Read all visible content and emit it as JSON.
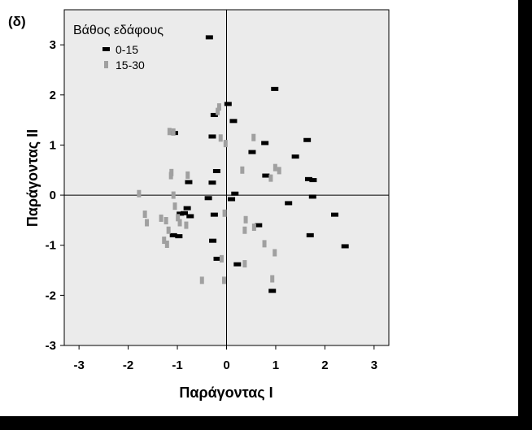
{
  "panel_label": "(δ)",
  "chart_data": {
    "type": "scatter",
    "xlabel": "Παράγοντας I",
    "ylabel": "Παράγοντας II",
    "xlim": [
      -3.3,
      3.3
    ],
    "ylim": [
      -3,
      3.7
    ],
    "xticks": [
      "-3",
      "-2",
      "-1",
      "0",
      "1",
      "2",
      "3"
    ],
    "yticks": [
      "-3",
      "-2",
      "-1",
      "0",
      "1",
      "2",
      "3"
    ],
    "xtick_values": [
      -3,
      -2,
      -1,
      0,
      1,
      2,
      3
    ],
    "ytick_values": [
      -3,
      -2,
      -1,
      0,
      1,
      2,
      3
    ],
    "reference_lines": {
      "x": 0,
      "y": 0
    },
    "plot_background": "#ebebeb",
    "legend": {
      "title": "Βάθος εδάφους",
      "position": "top-left",
      "entries": [
        {
          "label": "0-15",
          "color": "#000000"
        },
        {
          "label": "15-30",
          "color": "#a0a0a0"
        }
      ]
    },
    "series": [
      {
        "name": "0-15",
        "color": "#000000",
        "marker": "horizontal-bar",
        "points": [
          [
            -0.35,
            3.15
          ],
          [
            0.98,
            2.12
          ],
          [
            0.03,
            1.82
          ],
          [
            -0.25,
            1.6
          ],
          [
            0.14,
            1.48
          ],
          [
            -1.06,
            1.24
          ],
          [
            -0.29,
            1.17
          ],
          [
            1.64,
            1.1
          ],
          [
            0.78,
            1.04
          ],
          [
            0.52,
            0.86
          ],
          [
            1.4,
            0.77
          ],
          [
            -0.2,
            0.48
          ],
          [
            0.8,
            0.39
          ],
          [
            1.67,
            0.32
          ],
          [
            1.76,
            0.3
          ],
          [
            -0.77,
            0.26
          ],
          [
            -0.29,
            0.25
          ],
          [
            0.17,
            0.03
          ],
          [
            -0.37,
            -0.06
          ],
          [
            1.75,
            -0.03
          ],
          [
            0.1,
            -0.08
          ],
          [
            1.26,
            -0.16
          ],
          [
            -0.8,
            -0.26
          ],
          [
            -0.86,
            -0.36
          ],
          [
            -0.94,
            -0.37
          ],
          [
            -0.25,
            -0.39
          ],
          [
            2.2,
            -0.39
          ],
          [
            -0.74,
            -0.42
          ],
          [
            0.65,
            -0.6
          ],
          [
            -1.08,
            -0.8
          ],
          [
            -0.97,
            -0.82
          ],
          [
            1.7,
            -0.8
          ],
          [
            -0.28,
            -0.91
          ],
          [
            2.41,
            -1.02
          ],
          [
            -0.19,
            -1.27
          ],
          [
            0.22,
            -1.38
          ],
          [
            0.93,
            -1.91
          ]
        ]
      },
      {
        "name": "15-30",
        "color": "#a0a0a0",
        "marker": "vertical-bar",
        "points": [
          [
            -0.15,
            1.76
          ],
          [
            -0.18,
            1.67
          ],
          [
            -1.16,
            1.27
          ],
          [
            -1.08,
            1.26
          ],
          [
            -0.12,
            1.14
          ],
          [
            0.55,
            1.15
          ],
          [
            -0.02,
            1.03
          ],
          [
            0.32,
            0.5
          ],
          [
            0.99,
            0.55
          ],
          [
            1.07,
            0.49
          ],
          [
            -1.12,
            0.45
          ],
          [
            -1.13,
            0.39
          ],
          [
            -0.79,
            0.4
          ],
          [
            0.9,
            0.34
          ],
          [
            -1.78,
            0.03
          ],
          [
            -1.08,
            0.0
          ],
          [
            -1.05,
            -0.22
          ],
          [
            -1.66,
            -0.38
          ],
          [
            -1.33,
            -0.46
          ],
          [
            -0.99,
            -0.45
          ],
          [
            -1.23,
            -0.51
          ],
          [
            -1.62,
            -0.55
          ],
          [
            -0.04,
            -0.36
          ],
          [
            0.39,
            -0.49
          ],
          [
            -0.95,
            -0.55
          ],
          [
            -0.82,
            -0.6
          ],
          [
            -1.18,
            -0.7
          ],
          [
            0.37,
            -0.7
          ],
          [
            0.56,
            -0.64
          ],
          [
            -1.27,
            -0.9
          ],
          [
            -1.21,
            -0.98
          ],
          [
            0.77,
            -0.97
          ],
          [
            0.98,
            -1.15
          ],
          [
            -0.1,
            -1.27
          ],
          [
            0.37,
            -1.37
          ],
          [
            0.93,
            -1.67
          ],
          [
            -0.5,
            -1.7
          ],
          [
            -0.05,
            -1.7
          ]
        ]
      }
    ]
  }
}
